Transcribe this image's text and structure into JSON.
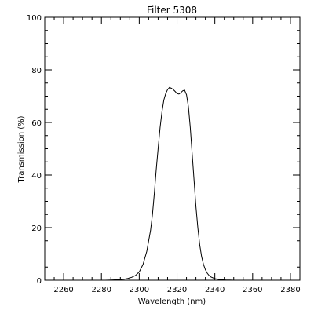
{
  "chart_data": {
    "type": "line",
    "title": "Filter 5308",
    "xlabel": "Wavelength (nm)",
    "ylabel": "Transmission (%)",
    "xlim": [
      2250,
      2385
    ],
    "ylim": [
      0,
      100
    ],
    "x_ticks": [
      2260,
      2280,
      2300,
      2320,
      2340,
      2360,
      2380
    ],
    "x_tick_labels": [
      "2260",
      "2280",
      "2300",
      "2320",
      "2340",
      "2360",
      "2380"
    ],
    "y_ticks": [
      0,
      20,
      40,
      60,
      80,
      100
    ],
    "y_tick_labels": [
      "0",
      "20",
      "40",
      "60",
      "80",
      "100"
    ],
    "x_minor_step": 5,
    "y_minor_step": 5,
    "grid": false,
    "series": [
      {
        "x": [
          2279,
          2282,
          2285,
          2289,
          2292,
          2294,
          2296,
          2298,
          2300,
          2302,
          2304,
          2306,
          2307,
          2308,
          2309,
          2310,
          2311,
          2312,
          2313,
          2314,
          2315,
          2316,
          2317,
          2318,
          2319,
          2320,
          2321,
          2322,
          2323,
          2324,
          2325,
          2326,
          2327,
          2328,
          2329,
          2330,
          2331,
          2332,
          2333,
          2334,
          2335,
          2336,
          2337,
          2338,
          2340,
          2342,
          2344,
          2346,
          2348,
          2350,
          2352,
          2355,
          2358
        ],
        "y": [
          0.0,
          0.0,
          0.1,
          0.2,
          0.4,
          0.7,
          1.1,
          1.8,
          3.2,
          6.0,
          11.0,
          19.0,
          25.0,
          33.0,
          42.0,
          50.0,
          58.0,
          64.0,
          68.5,
          71.0,
          72.5,
          73.3,
          73.0,
          72.5,
          71.8,
          71.0,
          70.8,
          71.3,
          72.0,
          72.3,
          70.5,
          66.0,
          58.0,
          48.0,
          38.0,
          28.0,
          20.0,
          13.5,
          9.0,
          6.0,
          4.0,
          2.7,
          1.8,
          1.2,
          0.6,
          0.3,
          0.2,
          0.1,
          0.1,
          0.0,
          0.0,
          0.0,
          0.0
        ]
      }
    ]
  }
}
